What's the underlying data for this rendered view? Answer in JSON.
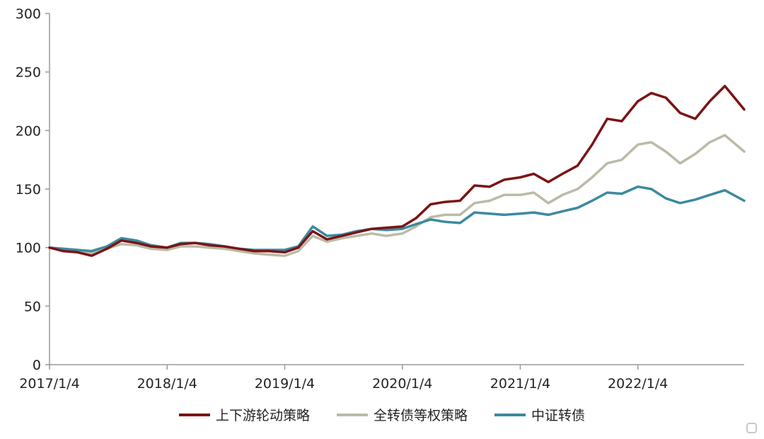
{
  "chart_data": {
    "type": "line",
    "title": "",
    "xlabel": "",
    "ylabel": "",
    "ylim": [
      0,
      300
    ],
    "yticks": [
      0,
      50,
      100,
      150,
      200,
      250,
      300
    ],
    "xlim": [
      "2017-01-04",
      "2022-11-30"
    ],
    "xticks": [
      {
        "date": "2017-01-04",
        "label": "2017/1/4"
      },
      {
        "date": "2018-01-04",
        "label": "2018/1/4"
      },
      {
        "date": "2019-01-04",
        "label": "2019/1/4"
      },
      {
        "date": "2020-01-04",
        "label": "2020/1/4"
      },
      {
        "date": "2021-01-04",
        "label": "2021/1/4"
      },
      {
        "date": "2022-01-04",
        "label": "2022/1/4"
      }
    ],
    "grid": false,
    "legend_position": "bottom",
    "series": [
      {
        "name": "上下游轮动策略",
        "color": "#7b1414",
        "x": [
          "2017-01-04",
          "2017-02-15",
          "2017-04-01",
          "2017-05-15",
          "2017-07-01",
          "2017-08-15",
          "2017-10-01",
          "2017-11-15",
          "2018-01-04",
          "2018-02-15",
          "2018-04-01",
          "2018-05-15",
          "2018-07-01",
          "2018-08-15",
          "2018-10-01",
          "2018-11-15",
          "2019-01-04",
          "2019-02-15",
          "2019-04-01",
          "2019-05-15",
          "2019-07-01",
          "2019-08-15",
          "2019-10-01",
          "2019-11-15",
          "2020-01-04",
          "2020-02-15",
          "2020-04-01",
          "2020-05-15",
          "2020-07-01",
          "2020-08-15",
          "2020-10-01",
          "2020-11-15",
          "2021-01-04",
          "2021-02-15",
          "2021-04-01",
          "2021-05-15",
          "2021-07-01",
          "2021-08-15",
          "2021-10-01",
          "2021-11-15",
          "2022-01-04",
          "2022-02-15",
          "2022-04-01",
          "2022-05-15",
          "2022-07-01",
          "2022-08-15",
          "2022-10-01",
          "2022-11-30"
        ],
        "values": [
          100,
          97,
          96,
          93,
          99,
          106,
          104,
          101,
          100,
          103,
          104,
          102,
          101,
          99,
          97,
          97,
          96,
          100,
          114,
          107,
          110,
          113,
          116,
          117,
          118,
          125,
          137,
          139,
          140,
          153,
          152,
          158,
          160,
          163,
          156,
          163,
          170,
          188,
          210,
          208,
          225,
          232,
          228,
          215,
          210,
          225,
          238,
          218
        ]
      },
      {
        "name": "全转债等权策略",
        "color": "#bcbaa7",
        "x": [
          "2017-01-04",
          "2017-02-15",
          "2017-04-01",
          "2017-05-15",
          "2017-07-01",
          "2017-08-15",
          "2017-10-01",
          "2017-11-15",
          "2018-01-04",
          "2018-02-15",
          "2018-04-01",
          "2018-05-15",
          "2018-07-01",
          "2018-08-15",
          "2018-10-01",
          "2018-11-15",
          "2019-01-04",
          "2019-02-15",
          "2019-04-01",
          "2019-05-15",
          "2019-07-01",
          "2019-08-15",
          "2019-10-01",
          "2019-11-15",
          "2020-01-04",
          "2020-02-15",
          "2020-04-01",
          "2020-05-15",
          "2020-07-01",
          "2020-08-15",
          "2020-10-01",
          "2020-11-15",
          "2021-01-04",
          "2021-02-15",
          "2021-04-01",
          "2021-05-15",
          "2021-07-01",
          "2021-08-15",
          "2021-10-01",
          "2021-11-15",
          "2022-01-04",
          "2022-02-15",
          "2022-04-01",
          "2022-05-15",
          "2022-07-01",
          "2022-08-15",
          "2022-10-01",
          "2022-11-30"
        ],
        "values": [
          100,
          98,
          97,
          95,
          99,
          103,
          102,
          99,
          98,
          101,
          101,
          100,
          99,
          97,
          95,
          94,
          93,
          97,
          110,
          105,
          108,
          110,
          112,
          110,
          112,
          118,
          126,
          128,
          128,
          138,
          140,
          145,
          145,
          147,
          138,
          145,
          150,
          160,
          172,
          175,
          188,
          190,
          182,
          172,
          180,
          190,
          196,
          182
        ]
      },
      {
        "name": "中证转债",
        "color": "#3b8aa0",
        "x": [
          "2017-01-04",
          "2017-02-15",
          "2017-04-01",
          "2017-05-15",
          "2017-07-01",
          "2017-08-15",
          "2017-10-01",
          "2017-11-15",
          "2018-01-04",
          "2018-02-15",
          "2018-04-01",
          "2018-05-15",
          "2018-07-01",
          "2018-08-15",
          "2018-10-01",
          "2018-11-15",
          "2019-01-04",
          "2019-02-15",
          "2019-04-01",
          "2019-05-15",
          "2019-07-01",
          "2019-08-15",
          "2019-10-01",
          "2019-11-15",
          "2020-01-04",
          "2020-02-15",
          "2020-04-01",
          "2020-05-15",
          "2020-07-01",
          "2020-08-15",
          "2020-10-01",
          "2020-11-15",
          "2021-01-04",
          "2021-02-15",
          "2021-04-01",
          "2021-05-15",
          "2021-07-01",
          "2021-08-15",
          "2021-10-01",
          "2021-11-15",
          "2022-01-04",
          "2022-02-15",
          "2022-04-01",
          "2022-05-15",
          "2022-07-01",
          "2022-08-15",
          "2022-10-01",
          "2022-11-30"
        ],
        "values": [
          100,
          99,
          98,
          97,
          101,
          108,
          106,
          102,
          100,
          104,
          104,
          103,
          101,
          99,
          98,
          98,
          98,
          101,
          118,
          110,
          111,
          114,
          116,
          115,
          116,
          120,
          124,
          122,
          121,
          130,
          129,
          128,
          129,
          130,
          128,
          131,
          134,
          140,
          147,
          146,
          152,
          150,
          142,
          138,
          141,
          145,
          149,
          140
        ]
      }
    ]
  }
}
